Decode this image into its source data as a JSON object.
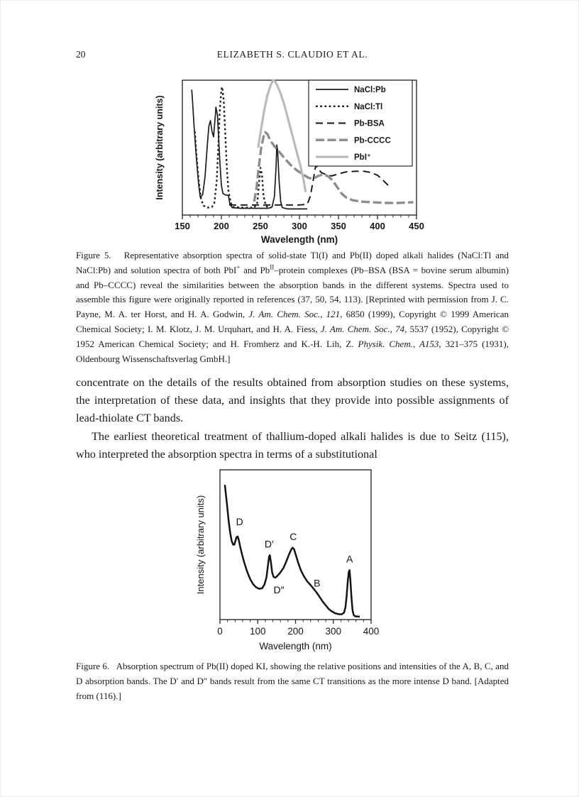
{
  "page": {
    "number": "20",
    "running_head": "ELIZABETH S. CLAUDIO ET AL."
  },
  "body": {
    "para1": "concentrate on the details of the results obtained from absorption studies on these systems, the interpretation of these data, and insights that they provide into possible assignments of lead-thiolate CT bands.",
    "para2": "The earliest theoretical treatment of thallium-doped alkali halides is due to Seitz (115), who interpreted the absorption spectra in terms of a substitutional"
  },
  "figure5": {
    "caption_segments": [
      {
        "t": "Figure 5.   Representative absorption spectra of solid-state Tl(I) and Pb(II) doped alkali halides (NaCl:Tl and NaCl:Pb) and solution spectra of both PbI"
      },
      {
        "t": "+",
        "s": "sup"
      },
      {
        "t": " and Pb"
      },
      {
        "t": "II",
        "s": "sup"
      },
      {
        "t": "–protein complexes (Pb–BSA (BSA = bovine serum albumin) and Pb–CCCC) reveal the similarities between the absorption bands in the different systems. Spectra used to assemble this figure were originally reported in references (37, 50, 54, 113). [Reprinted with permission from J. C. Payne, M. A. ter Horst, and H. A. Godwin, "
      },
      {
        "t": "J. Am. Chem. Soc., 121",
        "s": "i"
      },
      {
        "t": ", 6850 (1999), Copyright © 1999 American Chemical Society; I. M. Klotz, J. M. Urquhart, and H. A. Fiess, "
      },
      {
        "t": "J. Am. Chem. Soc., 74",
        "s": "i"
      },
      {
        "t": ", 5537 (1952), Copyright © 1952 American Chemical Society; and H. Fromherz and K.-H. Lih, Z. "
      },
      {
        "t": "Physik. Chem., A153",
        "s": "i"
      },
      {
        "t": ", 321–375 (1931), Oldenbourg Wissenschaftsverlag GmbH.]"
      }
    ]
  },
  "figure6": {
    "caption_segments": [
      {
        "t": "Figure 6.   Absorption spectrum of Pb(II) doped KI, showing the relative positions and intensities of the A, B, C, and D absorption bands. The D′ and D″ bands result from the same CT transitions as the more intense D band. [Adapted from (116).]"
      }
    ]
  },
  "chart_data": [
    {
      "type": "line",
      "title": "Figure 5 spectra",
      "xlabel": "Wavelength (nm)",
      "ylabel": "Intensity (arbitrary units)",
      "xlim": [
        150,
        450
      ],
      "ylim": [
        0,
        1
      ],
      "x_major_ticks": [
        150,
        200,
        250,
        300,
        350,
        400,
        450
      ],
      "x_minor_step": 10,
      "grid": false,
      "legend_position": "top-right",
      "series": [
        {
          "name": "NaCl:Pb",
          "style": "solid",
          "color": "#1c1c1c",
          "width": 1.7,
          "points": [
            [
              162,
              0.93
            ],
            [
              163,
              0.85
            ],
            [
              165,
              0.66
            ],
            [
              168,
              0.42
            ],
            [
              171,
              0.22
            ],
            [
              173,
              0.13
            ],
            [
              176,
              0.15
            ],
            [
              179,
              0.28
            ],
            [
              182,
              0.52
            ],
            [
              184,
              0.66
            ],
            [
              186,
              0.7
            ],
            [
              188,
              0.62
            ],
            [
              190,
              0.58
            ],
            [
              192,
              0.72
            ],
            [
              193,
              0.8
            ],
            [
              195,
              0.74
            ],
            [
              196,
              0.62
            ],
            [
              198,
              0.4
            ],
            [
              200,
              0.22
            ],
            [
              202,
              0.16
            ],
            [
              205,
              0.15
            ],
            [
              209,
              0.145
            ],
            [
              211,
              0.08
            ],
            [
              214,
              0.055
            ],
            [
              225,
              0.05
            ],
            [
              245,
              0.05
            ],
            [
              260,
              0.05
            ],
            [
              265,
              0.06
            ],
            [
              268,
              0.14
            ],
            [
              270,
              0.35
            ],
            [
              271,
              0.52
            ],
            [
              272,
              0.48
            ],
            [
              274,
              0.25
            ],
            [
              276,
              0.1
            ],
            [
              278,
              0.055
            ],
            [
              285,
              0.045
            ],
            [
              300,
              0.045
            ],
            [
              310,
              0.045
            ]
          ]
        },
        {
          "name": "NaCl:Tl",
          "style": "dotted",
          "color": "#222222",
          "width": 2.4,
          "points": [
            [
              166,
              0.62
            ],
            [
              168,
              0.45
            ],
            [
              171,
              0.25
            ],
            [
              174,
              0.12
            ],
            [
              177,
              0.07
            ],
            [
              182,
              0.055
            ],
            [
              188,
              0.06
            ],
            [
              191,
              0.09
            ],
            [
              194,
              0.25
            ],
            [
              196,
              0.5
            ],
            [
              198,
              0.78
            ],
            [
              200,
              0.93
            ],
            [
              201,
              0.95
            ],
            [
              203,
              0.85
            ],
            [
              205,
              0.6
            ],
            [
              207,
              0.35
            ],
            [
              209,
              0.18
            ],
            [
              212,
              0.09
            ],
            [
              215,
              0.06
            ],
            [
              228,
              0.055
            ],
            [
              242,
              0.055
            ],
            [
              246,
              0.09
            ],
            [
              248,
              0.22
            ],
            [
              250,
              0.35
            ],
            [
              252,
              0.3
            ],
            [
              254,
              0.14
            ],
            [
              257,
              0.07
            ],
            [
              260,
              0.055
            ],
            [
              264,
              0.055
            ]
          ]
        },
        {
          "name": "Pb-BSA",
          "style": "long-dash",
          "color": "#141414",
          "width": 1.9,
          "points": [
            [
              210,
              0.075
            ],
            [
              240,
              0.075
            ],
            [
              270,
              0.075
            ],
            [
              300,
              0.075
            ],
            [
              310,
              0.08
            ],
            [
              314,
              0.14
            ],
            [
              318,
              0.27
            ],
            [
              321,
              0.37
            ],
            [
              324,
              0.345
            ],
            [
              328,
              0.315
            ],
            [
              334,
              0.3
            ],
            [
              341,
              0.29
            ],
            [
              350,
              0.305
            ],
            [
              360,
              0.32
            ],
            [
              372,
              0.325
            ],
            [
              383,
              0.325
            ],
            [
              392,
              0.315
            ],
            [
              400,
              0.295
            ],
            [
              406,
              0.265
            ],
            [
              411,
              0.235
            ],
            [
              414,
              0.22
            ]
          ]
        },
        {
          "name": "Pb-CCCC",
          "style": "heavy-dash",
          "color": "#8d8d8d",
          "width": 3.4,
          "points": [
            [
              242,
              0.1
            ],
            [
              245,
              0.2
            ],
            [
              248,
              0.36
            ],
            [
              251,
              0.5
            ],
            [
              254,
              0.58
            ],
            [
              256,
              0.615
            ],
            [
              259,
              0.6
            ],
            [
              263,
              0.55
            ],
            [
              268,
              0.51
            ],
            [
              274,
              0.47
            ],
            [
              281,
              0.42
            ],
            [
              289,
              0.37
            ],
            [
              297,
              0.33
            ],
            [
              305,
              0.3
            ],
            [
              312,
              0.275
            ],
            [
              318,
              0.27
            ],
            [
              324,
              0.29
            ],
            [
              330,
              0.3
            ],
            [
              336,
              0.29
            ],
            [
              342,
              0.26
            ],
            [
              348,
              0.21
            ],
            [
              354,
              0.16
            ],
            [
              360,
              0.13
            ],
            [
              368,
              0.11
            ],
            [
              378,
              0.1
            ],
            [
              392,
              0.095
            ],
            [
              410,
              0.09
            ],
            [
              428,
              0.09
            ],
            [
              446,
              0.095
            ]
          ]
        },
        {
          "name": "PbI⁺",
          "style": "solid",
          "color": "#bababa",
          "width": 3.2,
          "points": [
            [
              247,
              0.5
            ],
            [
              251,
              0.64
            ],
            [
              255,
              0.78
            ],
            [
              259,
              0.89
            ],
            [
              263,
              0.96
            ],
            [
              266,
              1.0
            ],
            [
              269,
              0.99
            ],
            [
              272,
              0.955
            ],
            [
              276,
              0.9
            ],
            [
              281,
              0.81
            ],
            [
              286,
              0.7
            ],
            [
              291,
              0.59
            ],
            [
              296,
              0.48
            ],
            [
              301,
              0.37
            ],
            [
              305,
              0.27
            ],
            [
              308,
              0.17
            ]
          ]
        }
      ]
    },
    {
      "type": "line",
      "title": "Figure 6 absorption spectrum of Pb(II) doped KI",
      "xlabel": "Wavelength (nm)",
      "ylabel": "Intensity  (arbitrary units)",
      "xlim": [
        0,
        400
      ],
      "ylim": [
        0,
        1
      ],
      "x_major_ticks": [
        0,
        100,
        200,
        300,
        400
      ],
      "x_minor_step": 20,
      "grid": false,
      "legend_position": "none",
      "series": [
        {
          "name": "Pb(II) doped KI",
          "style": "solid",
          "color": "#141414",
          "width": 2.5,
          "points": [
            [
              13,
              0.9
            ],
            [
              16,
              0.83
            ],
            [
              19,
              0.76
            ],
            [
              23,
              0.66
            ],
            [
              27,
              0.58
            ],
            [
              31,
              0.525
            ],
            [
              35,
              0.5
            ],
            [
              38,
              0.5
            ],
            [
              41,
              0.525
            ],
            [
              44,
              0.55
            ],
            [
              47,
              0.555
            ],
            [
              50,
              0.53
            ],
            [
              54,
              0.48
            ],
            [
              59,
              0.43
            ],
            [
              65,
              0.375
            ],
            [
              72,
              0.32
            ],
            [
              80,
              0.27
            ],
            [
              88,
              0.235
            ],
            [
              96,
              0.215
            ],
            [
              104,
              0.205
            ],
            [
              112,
              0.21
            ],
            [
              118,
              0.235
            ],
            [
              123,
              0.28
            ],
            [
              127,
              0.36
            ],
            [
              130,
              0.42
            ],
            [
              132,
              0.43
            ],
            [
              135,
              0.38
            ],
            [
              138,
              0.315
            ],
            [
              142,
              0.285
            ],
            [
              147,
              0.28
            ],
            [
              153,
              0.295
            ],
            [
              160,
              0.315
            ],
            [
              168,
              0.345
            ],
            [
              175,
              0.385
            ],
            [
              182,
              0.43
            ],
            [
              188,
              0.465
            ],
            [
              192,
              0.48
            ],
            [
              196,
              0.47
            ],
            [
              201,
              0.43
            ],
            [
              207,
              0.38
            ],
            [
              214,
              0.33
            ],
            [
              222,
              0.29
            ],
            [
              231,
              0.255
            ],
            [
              240,
              0.23
            ],
            [
              248,
              0.205
            ],
            [
              256,
              0.18
            ],
            [
              264,
              0.15
            ],
            [
              272,
              0.12
            ],
            [
              280,
              0.095
            ],
            [
              288,
              0.07
            ],
            [
              296,
              0.055
            ],
            [
              305,
              0.042
            ],
            [
              314,
              0.036
            ],
            [
              322,
              0.035
            ],
            [
              328,
              0.045
            ],
            [
              332,
              0.08
            ],
            [
              335,
              0.15
            ],
            [
              338,
              0.25
            ],
            [
              341,
              0.32
            ],
            [
              343,
              0.33
            ],
            [
              345,
              0.27
            ],
            [
              348,
              0.15
            ],
            [
              351,
              0.06
            ],
            [
              354,
              0.03
            ],
            [
              358,
              0.022
            ],
            [
              364,
              0.02
            ],
            [
              370,
              0.02
            ]
          ]
        }
      ],
      "annotations": [
        {
          "t": "D",
          "x": 52,
          "y": 0.655
        },
        {
          "t": "D′",
          "x": 130,
          "y": 0.505
        },
        {
          "t": "D″",
          "x": 156,
          "y": 0.2
        },
        {
          "t": "C",
          "x": 194,
          "y": 0.555
        },
        {
          "t": "B",
          "x": 257,
          "y": 0.245
        },
        {
          "t": "A",
          "x": 343,
          "y": 0.405
        }
      ]
    }
  ]
}
